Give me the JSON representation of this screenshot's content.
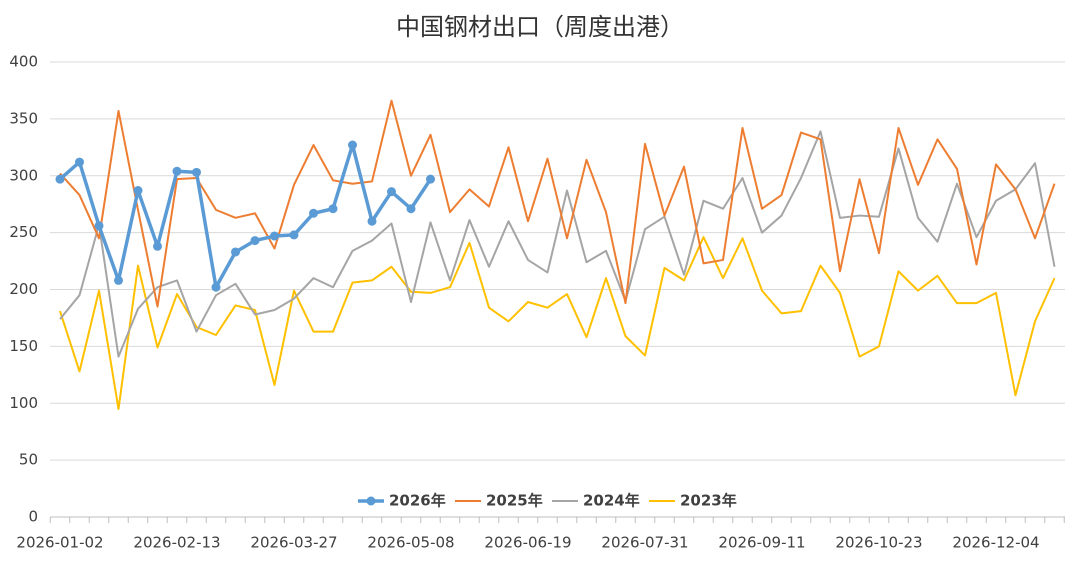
{
  "chart_data": {
    "type": "line",
    "title": "中国钢材出口（周度出港）",
    "categories": [
      "2026-01-02",
      null,
      null,
      null,
      null,
      null,
      "2026-02-13",
      null,
      null,
      null,
      null,
      null,
      "2026-03-27",
      null,
      null,
      null,
      null,
      null,
      "2026-05-08",
      null,
      null,
      null,
      null,
      null,
      "2026-06-19",
      null,
      null,
      null,
      null,
      null,
      "2026-07-31",
      null,
      null,
      null,
      null,
      null,
      "2026-09-11",
      null,
      null,
      null,
      null,
      null,
      "2026-10-23",
      null,
      null,
      null,
      null,
      null,
      "2026-12-04",
      null,
      null,
      null
    ],
    "series": [
      {
        "name": "2026年",
        "color": "#5b9bd5",
        "values": [
          297,
          312,
          256,
          208,
          287,
          238,
          304,
          303,
          202,
          233,
          243,
          247,
          248,
          267,
          271,
          327,
          260,
          286,
          271,
          297,
          null,
          null,
          null,
          null,
          null,
          null,
          null,
          null,
          null,
          null,
          null,
          null,
          null,
          null,
          null,
          null,
          null,
          null,
          null,
          null,
          null,
          null,
          null,
          null,
          null,
          null,
          null,
          null,
          null,
          null,
          null,
          null
        ]
      },
      {
        "name": "2025年",
        "color": "#ed7d31",
        "values": [
          302,
          283,
          245,
          357,
          270,
          185,
          297,
          298,
          270,
          263,
          267,
          236,
          292,
          327,
          296,
          293,
          295,
          366,
          300,
          336,
          268,
          288,
          273,
          325,
          260,
          315,
          245,
          314,
          268,
          188,
          328,
          265,
          308,
          223,
          226,
          342,
          271,
          283,
          338,
          332,
          216,
          297,
          232,
          342,
          292,
          332,
          306,
          222,
          310,
          288,
          245,
          293
        ]
      },
      {
        "name": "2024年",
        "color": "#a5a5a5",
        "values": [
          174,
          195,
          257,
          141,
          183,
          202,
          208,
          163,
          195,
          205,
          178,
          182,
          192,
          210,
          202,
          234,
          243,
          258,
          189,
          259,
          208,
          261,
          220,
          260,
          226,
          215,
          287,
          224,
          234,
          190,
          253,
          264,
          213,
          278,
          271,
          298,
          250,
          265,
          298,
          339,
          263,
          265,
          264,
          324,
          263,
          242,
          293,
          246,
          278,
          288,
          311,
          220
        ]
      },
      {
        "name": "2023年",
        "color": "#ffc000",
        "values": [
          181,
          128,
          199,
          95,
          221,
          149,
          196,
          167,
          160,
          186,
          182,
          116,
          199,
          163,
          163,
          206,
          208,
          220,
          198,
          197,
          202,
          241,
          184,
          172,
          189,
          184,
          196,
          158,
          210,
          159,
          142,
          219,
          208,
          246,
          210,
          245,
          199,
          179,
          181,
          221,
          197,
          141,
          150,
          216,
          199,
          212,
          188,
          188,
          197,
          107,
          172,
          210
        ]
      }
    ],
    "ylim": [
      0,
      400
    ],
    "yticks": [
      0,
      50,
      100,
      150,
      200,
      250,
      300,
      350,
      400
    ],
    "grid": true,
    "legend": "bottom"
  }
}
